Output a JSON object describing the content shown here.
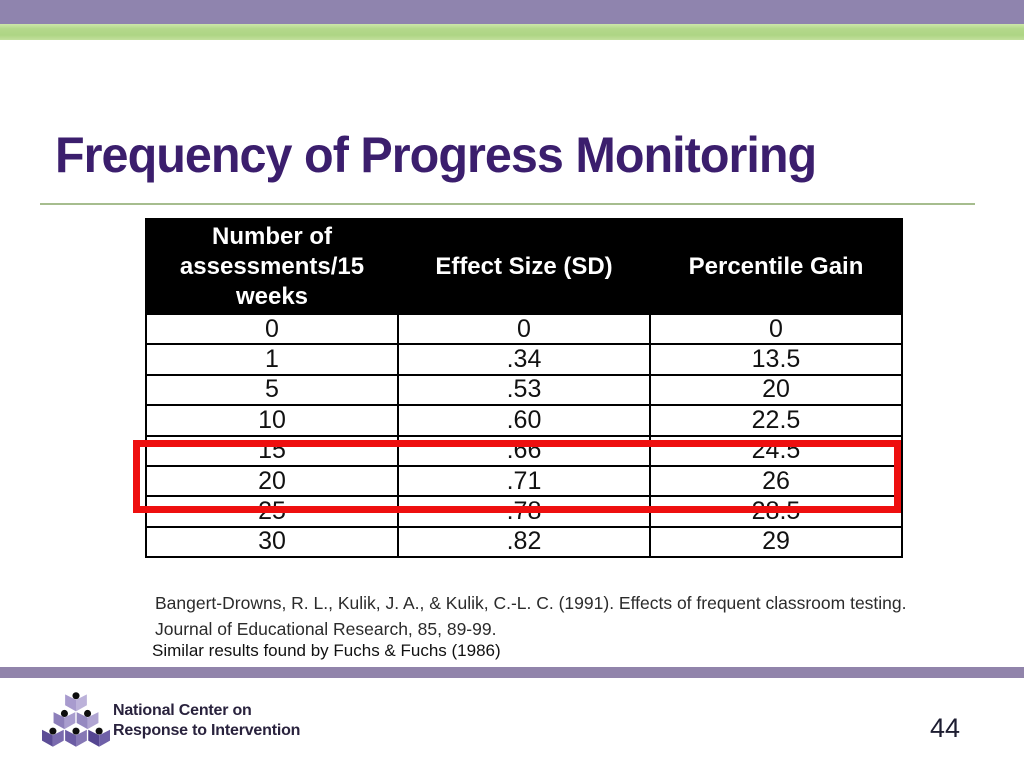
{
  "slide": {
    "title": "Frequency of Progress Monitoring",
    "page_number": "44"
  },
  "chart_data": {
    "type": "table",
    "title": "Frequency of Progress Monitoring",
    "columns": [
      "Number of assessments/15 weeks",
      "Effect Size (SD)",
      "Percentile Gain"
    ],
    "rows": [
      [
        "0",
        "0",
        "0"
      ],
      [
        "1",
        ".34",
        "13.5"
      ],
      [
        "5",
        ".53",
        "20"
      ],
      [
        "10",
        ".60",
        "22.5"
      ],
      [
        "15",
        ".66",
        "24.5"
      ],
      [
        "20",
        ".71",
        "26"
      ],
      [
        "25",
        ".78",
        "28.5"
      ],
      [
        "30",
        ".82",
        "29"
      ]
    ],
    "highlighted_rows": [
      4,
      5
    ]
  },
  "table": {
    "headers": [
      "Number of assessments/15 weeks",
      "Effect Size (SD)",
      "Percentile Gain"
    ],
    "rows": [
      [
        "0",
        "0",
        "0"
      ],
      [
        "1",
        ".34",
        "13.5"
      ],
      [
        "5",
        ".53",
        "20"
      ],
      [
        "10",
        ".60",
        "22.5"
      ],
      [
        "15",
        ".66",
        "24.5"
      ],
      [
        "20",
        ".71",
        "26"
      ],
      [
        "25",
        ".78",
        "28.5"
      ],
      [
        "30",
        ".82",
        "29"
      ]
    ]
  },
  "citation": {
    "line1": "Bangert-Drowns, R. L., Kulik, J. A., & Kulik, C.-L. C. (1991). Effects of frequent classroom testing.",
    "line2": "Journal of Educational Research, 85, 89-99.",
    "similar_note": "Similar results found by Fuchs & Fuchs (1986)"
  },
  "footer": {
    "org_line1": "National Center on",
    "org_line2": "Response to Intervention"
  },
  "colors": {
    "title_purple": "#3b1e6d",
    "banner_purple": "#8f84ae",
    "banner_green": "#b3d88b",
    "rule_green": "#a6bd8e",
    "highlight_red": "#ee0f0f",
    "footer_bar_purple": "#9184ab",
    "header_bg": "#000000",
    "header_text": "#ffffff"
  }
}
